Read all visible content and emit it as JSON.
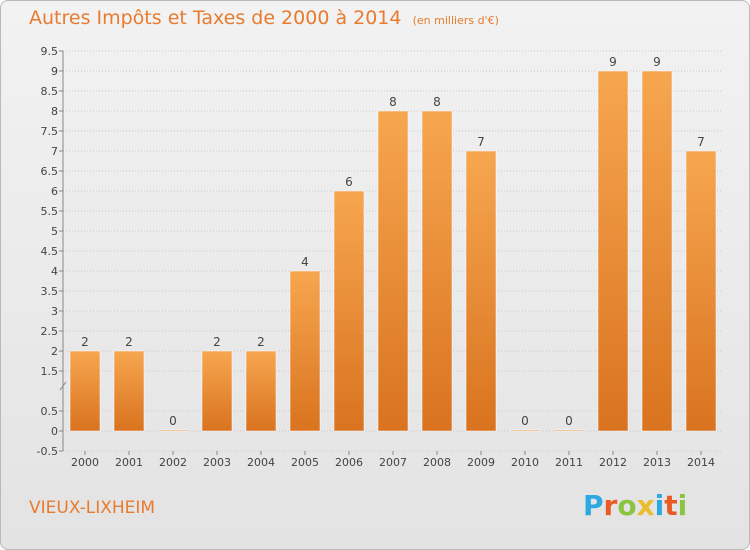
{
  "header": {
    "title": "Autres Impôts et Taxes de 2000 à 2014",
    "unit": "(en milliers d'€)"
  },
  "footer": {
    "city": "VIEUX-LIXHEIM",
    "logo_letters": [
      "P",
      "r",
      "o",
      "x",
      "i",
      "t",
      "i"
    ],
    "logo_colors": [
      "#2ea8e0",
      "#ea5a26",
      "#8bc43f",
      "#e9bd2d",
      "#2ea8e0",
      "#ea5a26",
      "#8bc43f"
    ]
  },
  "colors": {
    "bar_light": "#f7a650",
    "bar_dark": "#d9731f",
    "accent": "#e87b2e",
    "grid": "#c8c8c8"
  },
  "chart_data": {
    "type": "bar",
    "title": "Autres Impôts et Taxes de 2000 à 2014",
    "subtitle": "(en milliers d'€)",
    "xlabel": "",
    "ylabel": "",
    "categories": [
      "2000",
      "2001",
      "2002",
      "2003",
      "2004",
      "2005",
      "2006",
      "2007",
      "2008",
      "2009",
      "2010",
      "2011",
      "2012",
      "2013",
      "2014"
    ],
    "values": [
      2,
      2,
      0,
      2,
      2,
      4,
      6,
      8,
      8,
      7,
      0,
      0,
      9,
      9,
      7
    ],
    "data_labels": [
      "2",
      "2",
      "0",
      "2",
      "2",
      "4",
      "6",
      "8",
      "8",
      "7",
      "0",
      "0",
      "9",
      "9",
      "7"
    ],
    "yticks": [
      -0.5,
      0,
      0.5,
      1.5,
      2,
      2.5,
      3,
      3.5,
      4,
      4.5,
      5,
      5.5,
      6,
      6.5,
      7,
      7.5,
      8,
      8.5,
      9,
      9.5
    ],
    "ylim": [
      -0.5,
      9.5
    ],
    "grid": true,
    "legend": "none"
  }
}
